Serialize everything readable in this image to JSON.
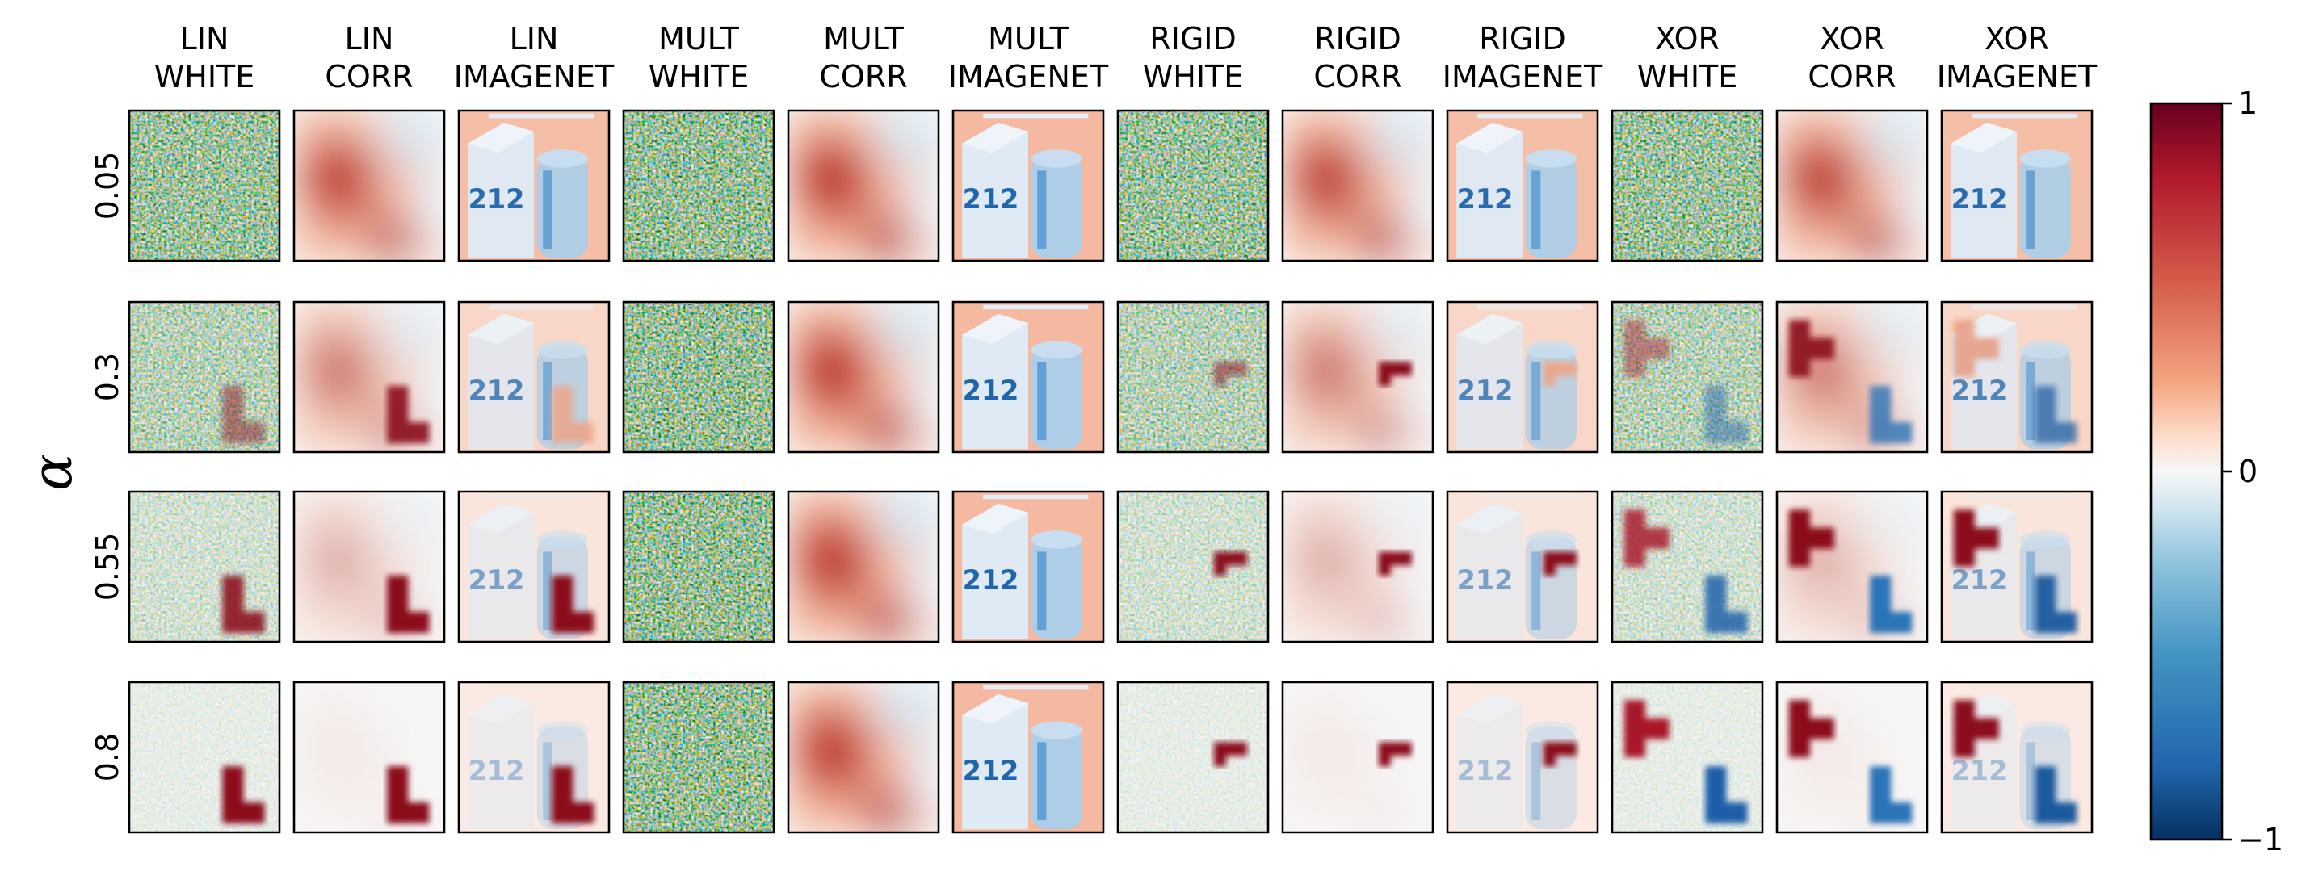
{
  "chart_data": {
    "type": "heatmap",
    "description": "Grid of 4x12 heatmap panels (explanation maps) with a shared diverging colorbar",
    "y_axis_symbol": "α",
    "columns": [
      {
        "line1": "LIN",
        "line2": "WHITE",
        "method": "LIN",
        "background": "WHITE"
      },
      {
        "line1": "LIN",
        "line2": "CORR",
        "method": "LIN",
        "background": "CORR"
      },
      {
        "line1": "LIN",
        "line2": "IMAGENET",
        "method": "LIN",
        "background": "IMAGENET"
      },
      {
        "line1": "MULT",
        "line2": "WHITE",
        "method": "MULT",
        "background": "WHITE"
      },
      {
        "line1": "MULT",
        "line2": "CORR",
        "method": "MULT",
        "background": "CORR"
      },
      {
        "line1": "MULT",
        "line2": "IMAGENET",
        "method": "MULT",
        "background": "IMAGENET"
      },
      {
        "line1": "RIGID",
        "line2": "WHITE",
        "method": "RIGID",
        "background": "WHITE"
      },
      {
        "line1": "RIGID",
        "line2": "CORR",
        "method": "RIGID",
        "background": "CORR"
      },
      {
        "line1": "RIGID",
        "line2": "IMAGENET",
        "method": "RIGID",
        "background": "IMAGENET"
      },
      {
        "line1": "XOR",
        "line2": "WHITE",
        "method": "XOR",
        "background": "WHITE"
      },
      {
        "line1": "XOR",
        "line2": "CORR",
        "method": "XOR",
        "background": "CORR"
      },
      {
        "line1": "XOR",
        "line2": "IMAGENET",
        "method": "XOR",
        "background": "IMAGENET"
      }
    ],
    "rows": [
      {
        "label": "0.05",
        "alpha": 0.05
      },
      {
        "label": "0.3",
        "alpha": 0.3
      },
      {
        "label": "0.55",
        "alpha": 0.55
      },
      {
        "label": "0.8",
        "alpha": 0.8
      }
    ],
    "panel_text": "212",
    "colorbar": {
      "colormap": "RdBu_r",
      "vmin": -1,
      "vmax": 1,
      "ticks": [
        {
          "value": 1,
          "label": "1"
        },
        {
          "value": 0,
          "label": "0"
        },
        {
          "value": -1,
          "label": "−1"
        }
      ]
    },
    "colors": {
      "dark_red": "#67001f",
      "red": "#b2182b",
      "light_red": "#f4a582",
      "white": "#f7f7f7",
      "light_blue": "#92c5de",
      "blue": "#2166ac",
      "dark_blue": "#053061"
    }
  }
}
